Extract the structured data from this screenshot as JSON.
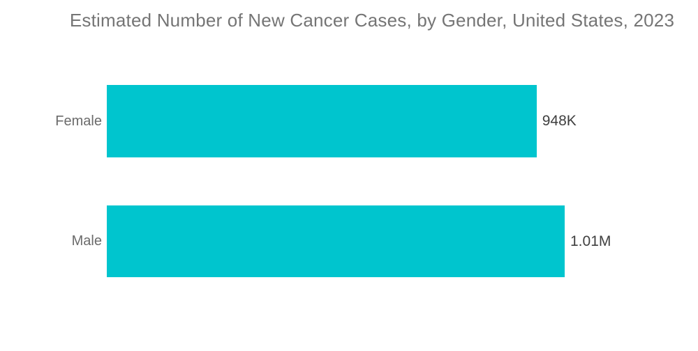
{
  "chart_data": {
    "type": "bar",
    "orientation": "horizontal",
    "title": "Estimated Number of New Cancer Cases, by Gender, United States, 2023",
    "categories": [
      "Female",
      "Male"
    ],
    "values": [
      948000,
      1010000
    ],
    "value_labels": [
      "948K",
      "1.01M"
    ],
    "xlim": [
      0,
      1010000
    ],
    "grid": false,
    "legend": "none",
    "colors": {
      "bar": "#00C5CE",
      "title_text": "#757575",
      "category_text": "#6B6B6B",
      "value_text": "#3F3F3F",
      "background": "#FFFFFF"
    }
  }
}
